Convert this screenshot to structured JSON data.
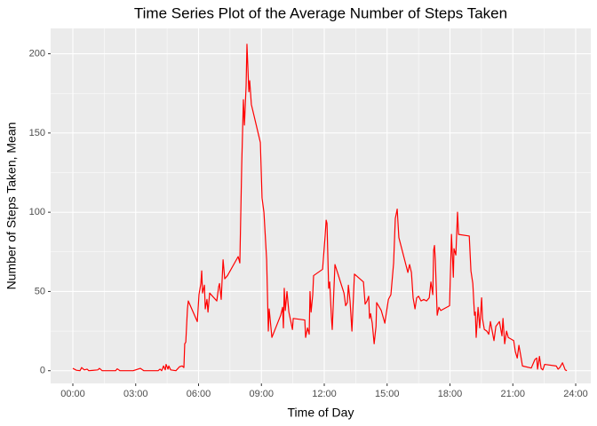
{
  "chart_data": {
    "type": "line",
    "title": "Time Series Plot of the Average Number of Steps Taken",
    "x_label": "Time of Day",
    "y_label": "Number of Steps Taken, Mean",
    "x": [
      0,
      0.17,
      0.34,
      0.42,
      0.55,
      0.68,
      0.76,
      0.93,
      1.19,
      1.27,
      1.4,
      2.04,
      2.12,
      2.25,
      2.88,
      3.22,
      3.39,
      4.07,
      4.16,
      4.24,
      4.33,
      4.41,
      4.45,
      4.54,
      4.58,
      4.67,
      4.92,
      5.09,
      5.22,
      5.3,
      5.34,
      5.39,
      5.47,
      5.51,
      5.94,
      6.02,
      6.11,
      6.15,
      6.19,
      6.28,
      6.32,
      6.4,
      6.45,
      6.53,
      6.87,
      6.96,
      7.0,
      7.08,
      7.17,
      7.25,
      7.38,
      7.89,
      7.97,
      8.06,
      8.14,
      8.19,
      8.27,
      8.31,
      8.4,
      8.44,
      8.52,
      8.95,
      9.03,
      9.12,
      9.25,
      9.33,
      9.37,
      9.5,
      9.92,
      10.01,
      10.05,
      10.09,
      10.14,
      10.22,
      10.31,
      10.39,
      10.48,
      10.52,
      11.07,
      11.11,
      11.2,
      11.28,
      11.32,
      11.37,
      11.45,
      11.49,
      11.92,
      12.04,
      12.09,
      12.13,
      12.21,
      12.26,
      12.34,
      12.38,
      12.51,
      12.94,
      13.02,
      13.1,
      13.15,
      13.23,
      13.32,
      13.44,
      13.87,
      13.95,
      14.04,
      14.12,
      14.16,
      14.21,
      14.29,
      14.38,
      14.47,
      14.5,
      14.72,
      14.89,
      15.06,
      15.18,
      15.31,
      15.39,
      15.48,
      15.56,
      15.99,
      16.07,
      16.16,
      16.24,
      16.33,
      16.41,
      16.5,
      16.62,
      16.75,
      16.88,
      17.01,
      17.09,
      17.18,
      17.22,
      17.26,
      17.3,
      17.39,
      17.47,
      17.56,
      17.98,
      18.07,
      18.16,
      18.19,
      18.28,
      18.36,
      18.41,
      18.92,
      19.0,
      19.09,
      19.17,
      19.21,
      19.25,
      19.34,
      19.42,
      19.51,
      19.55,
      19.64,
      19.76,
      19.85,
      19.93,
      20.1,
      20.19,
      20.36,
      20.48,
      20.53,
      20.61,
      20.7,
      20.78,
      21.04,
      21.12,
      21.21,
      21.29,
      21.37,
      21.46,
      21.88,
      22.05,
      22.14,
      22.18,
      22.27,
      22.35,
      22.43,
      22.52,
      23.07,
      23.16,
      23.24,
      23.37,
      23.5,
      23.58
    ],
    "series": [
      {
        "name": "steps",
        "color": "#ff0000",
        "values": [
          1.5,
          0.3,
          0,
          2,
          0.5,
          1,
          0,
          0.2,
          0.5,
          1.5,
          0,
          0,
          1.2,
          0,
          0,
          1.5,
          0,
          0,
          1,
          0,
          3,
          0.5,
          4,
          1,
          3,
          0.5,
          0,
          2.5,
          3,
          2,
          17,
          18,
          39,
          44,
          31,
          48,
          55,
          63,
          49,
          54,
          39,
          45,
          37,
          49,
          44,
          53,
          55,
          45,
          70,
          58,
          60,
          72,
          68,
          130,
          171,
          155,
          180,
          206,
          176,
          183,
          168,
          144,
          109,
          100,
          70,
          25,
          39,
          21,
          35,
          40,
          27,
          52,
          38,
          50,
          37,
          32,
          26,
          33,
          32,
          21,
          27,
          23,
          50,
          37,
          48,
          60,
          64,
          85,
          95,
          93,
          52,
          56,
          34,
          26,
          67,
          49,
          41,
          43,
          54,
          44,
          25,
          61,
          56,
          42,
          44,
          47,
          33,
          36,
          30,
          17,
          28,
          43,
          38,
          30,
          45,
          48,
          68,
          96,
          102,
          84,
          62,
          67,
          62,
          46,
          39,
          46,
          47,
          44,
          45,
          44,
          46,
          56,
          48,
          76,
          79,
          70,
          35,
          40,
          38,
          41,
          86,
          59,
          77,
          73,
          100,
          86,
          85,
          63,
          55,
          35,
          37,
          21,
          40,
          27,
          46,
          33,
          26,
          25,
          23,
          31,
          19,
          28,
          31,
          22,
          33,
          17,
          25,
          21,
          19,
          12,
          8,
          16,
          10,
          3,
          1.7,
          7,
          8,
          1,
          9,
          1.5,
          0.5,
          4,
          3,
          1,
          2,
          5,
          0.5,
          0
        ]
      }
    ],
    "xlim": [
      -1.06,
      24.72
    ],
    "ylim": [
      -8,
      216
    ],
    "xticks": [
      {
        "value": 0,
        "label": "00:00"
      },
      {
        "value": 3,
        "label": "03:00"
      },
      {
        "value": 6,
        "label": "06:00"
      },
      {
        "value": 9,
        "label": "09:00"
      },
      {
        "value": 12,
        "label": "12:00"
      },
      {
        "value": 15,
        "label": "15:00"
      },
      {
        "value": 18,
        "label": "18:00"
      },
      {
        "value": 21,
        "label": "21:00"
      },
      {
        "value": 24,
        "label": "24:00"
      }
    ],
    "yticks": [
      0,
      50,
      100,
      150,
      200
    ],
    "grid": true
  }
}
